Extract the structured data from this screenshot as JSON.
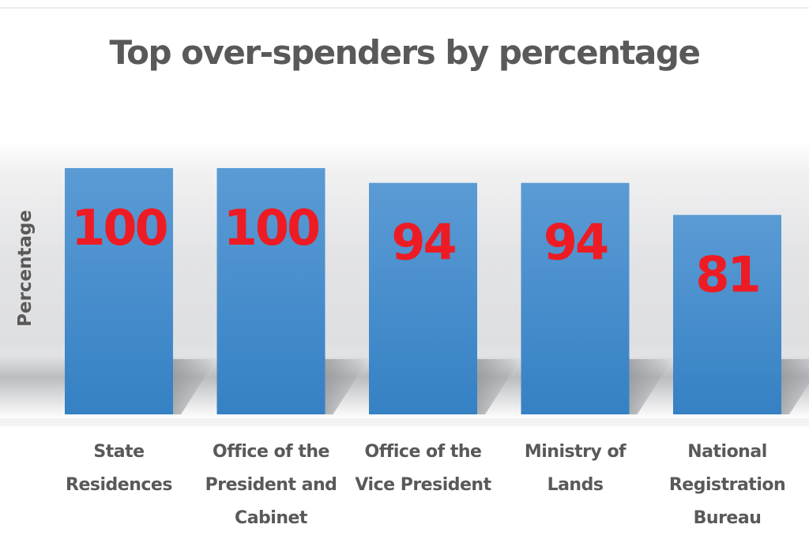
{
  "chart_data": {
    "type": "bar",
    "title": "Top over-spenders by percentage",
    "xlabel": "",
    "ylabel": "Percentage",
    "ylim": [
      0,
      100
    ],
    "grid": false,
    "legend": "none",
    "categories": [
      [
        "State",
        "Residences"
      ],
      [
        "Office of the",
        "President and",
        "Cabinet"
      ],
      [
        "Office of the",
        "Vice President"
      ],
      [
        "Ministry of",
        "Lands"
      ],
      [
        "National",
        "Registration",
        "Bureau"
      ]
    ],
    "values": [
      100,
      100,
      94,
      94,
      81
    ],
    "data_labels": [
      "100",
      "100",
      "94",
      "94",
      "81"
    ],
    "colors": {
      "bar_top": "#5b9bd5",
      "bar_bottom": "#3581c4",
      "data_label": "#ed1c24",
      "text": "#595959"
    }
  }
}
